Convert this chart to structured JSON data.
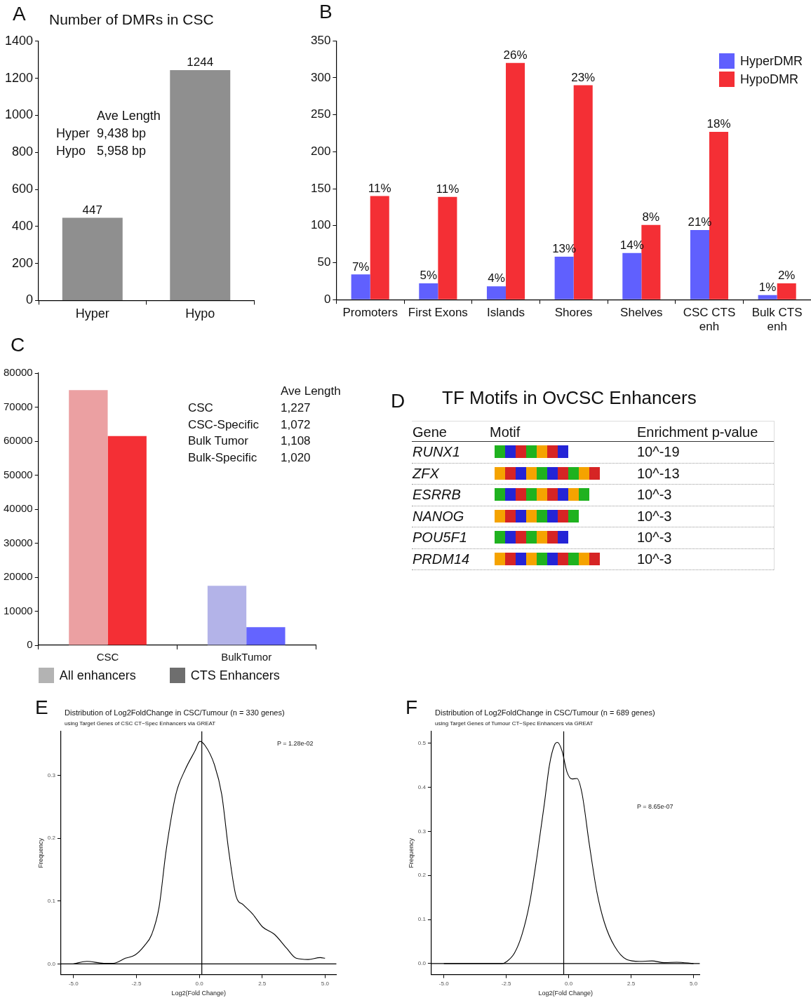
{
  "chart_data": [
    {
      "type": "bar",
      "title": "Number of DMRs in CSC",
      "categories": [
        "Hyper",
        "Hypo"
      ],
      "values": [
        447,
        1244
      ],
      "color": "#8f8f8f",
      "ylim": [
        0,
        1400
      ],
      "yticks": [
        0,
        200,
        400,
        600,
        800,
        1000,
        1200,
        1400
      ],
      "data_labels": true,
      "annotations": [
        "A",
        "Ave Length",
        "Hyper",
        "9,438 bp",
        "Hypo",
        "5,958 bp"
      ]
    },
    {
      "type": "bar",
      "categories": [
        "Promoters",
        "First Exons",
        "Islands",
        "Shores",
        "Shelves",
        "CSC CTS enh",
        "Bulk CTS enh"
      ],
      "series": [
        {
          "name": "HyperDMR",
          "color": "#6060fe",
          "values": [
            34,
            22,
            18,
            58,
            63,
            94,
            6
          ]
        },
        {
          "name": "HypoDMR",
          "color": "#f42f35",
          "values": [
            140,
            139,
            320,
            290,
            101,
            227,
            22
          ]
        }
      ],
      "ylim": [
        0,
        350
      ],
      "yticks": [
        0,
        50,
        100,
        150,
        200,
        250,
        300,
        350
      ],
      "legend": "top right",
      "annotations": [
        "B",
        {
          "text": "7%",
          "x": "Promoters",
          "y": 34
        },
        {
          "text": "11%",
          "x": "Promoters",
          "y": 140
        },
        {
          "text": "5%",
          "x": "First Exons",
          "y": 22
        },
        {
          "text": "11%",
          "x": "First Exons",
          "y": 139
        },
        {
          "text": "4%",
          "x": "Islands",
          "y": 18
        },
        {
          "text": "26%",
          "x": "Islands",
          "y": 320
        },
        {
          "text": "13%",
          "x": "Shores",
          "y": 58
        },
        {
          "text": "23%",
          "x": "Shores",
          "y": 290
        },
        {
          "text": "14%",
          "x": "Shelves",
          "y": 63
        },
        {
          "text": "8%",
          "x": "Shelves",
          "y": 101
        },
        {
          "text": "21%",
          "x": "CSC CTS enh",
          "y": 94
        },
        {
          "text": "18%",
          "x": "CSC CTS enh",
          "y": 227
        },
        {
          "text": "1%",
          "x": "Bulk CTS enh",
          "y": 6
        },
        {
          "text": "2%",
          "x": "Bulk CTS enh",
          "y": 22
        }
      ]
    },
    {
      "type": "bar",
      "categories": [
        "CSC",
        "BulkTumor"
      ],
      "series": [
        {
          "name": "All enhancers",
          "color": "#b3b3b3",
          "colors": [
            "#eba0a2",
            "#b3b3e8"
          ],
          "values": [
            75000,
            17500
          ]
        },
        {
          "name": "CTS Enhancers",
          "color": "#6e6e6e",
          "colors": [
            "#f42f35",
            "#6464ff"
          ],
          "values": [
            61500,
            5300
          ]
        }
      ],
      "ylim": [
        0,
        80000
      ],
      "yticks": [
        0,
        10000,
        20000,
        30000,
        40000,
        50000,
        60000,
        70000,
        80000
      ],
      "legend": "bottom",
      "annotations": [
        "C",
        "Ave Length",
        "CSC",
        "1,227",
        "CSC-Specific",
        "1,072",
        "Bulk Tumor",
        "1,108",
        "Bulk-Specific",
        "1,020"
      ]
    },
    {
      "type": "other",
      "title": "TF Motifs in OvCSC Enhancers",
      "annotations": [
        "D",
        "Gene",
        "Motif",
        "Enrichment p-value",
        "RUNX1",
        "10^-19",
        "ZFX",
        "10^-13",
        "ESRRB",
        "10^-3",
        "NANOG",
        "10^-3",
        "POU5F1",
        "10^-3",
        "PRDM14",
        "10^-3"
      ]
    },
    {
      "type": "line",
      "title": "Distribution of Log2FoldChange in CSC/Tumour (n = 330 genes)",
      "subtitle": "using Target Genes of CSC CT−Spec Enhancers via GREAT",
      "xlabel": "Log2(Fold Change)",
      "ylabel": "Frequency",
      "x": [
        -5,
        -4.47,
        -3.8,
        -3.42,
        -2.94,
        -2.56,
        -2.18,
        -1.89,
        -1.6,
        -1.32,
        -0.93,
        -0.55,
        -0.17,
        0.02,
        0.22,
        0.6,
        0.89,
        1.17,
        1.46,
        1.75,
        2.13,
        2.51,
        2.99,
        3.47,
        3.85,
        4.33,
        4.81,
        5
      ],
      "values": [
        0,
        0.004,
        0.001,
        0.001,
        0.009,
        0.014,
        0.029,
        0.047,
        0.09,
        0.18,
        0.27,
        0.31,
        0.339,
        0.354,
        0.348,
        0.317,
        0.27,
        0.18,
        0.108,
        0.094,
        0.079,
        0.059,
        0.047,
        0.025,
        0.009,
        0.007,
        0.01,
        0.009
      ],
      "color": "#000000",
      "xlim": [
        -5.5,
        5.45
      ],
      "ylim": [
        -0.017,
        0.37
      ],
      "xticks": [
        {
          "value": -5,
          "label": "-5.0"
        },
        {
          "value": -2.5,
          "label": "-2.5"
        },
        {
          "value": 0,
          "label": "0.0"
        },
        {
          "value": 2.5,
          "label": "2.5"
        },
        {
          "value": 5,
          "label": "5.0"
        }
      ],
      "yticks": [
        {
          "value": 0,
          "label": "0.0"
        },
        0.1,
        0.2,
        0.3
      ],
      "ref_lines": [
        {
          "axis": "x",
          "value": 0.1
        },
        {
          "axis": "y",
          "value": 0
        }
      ],
      "annotations": [
        "E",
        "P = 1.28e-02"
      ]
    },
    {
      "type": "line",
      "title": "Distribution of Log2FoldChange in CSC/Tumour (n = 689 genes)",
      "subtitle": "using Target Genes of Tumour CT−Spec Enhancers via GREAT",
      "xlabel": "Log2(Fold Change)",
      "ylabel": "Frequency",
      "x": [
        -5,
        -2.67,
        -2.47,
        -2.17,
        -1.87,
        -1.57,
        -1.27,
        -0.97,
        -0.77,
        -0.57,
        -0.45,
        -0.27,
        -0.07,
        0.13,
        0.33,
        0.53,
        0.83,
        1.13,
        1.43,
        1.83,
        2.33,
        2.83,
        3.33,
        3.83,
        4.33,
        5
      ],
      "values": [
        0,
        0,
        0.005,
        0.024,
        0.066,
        0.136,
        0.243,
        0.365,
        0.451,
        0.496,
        0.502,
        0.483,
        0.435,
        0.419,
        0.42,
        0.387,
        0.269,
        0.162,
        0.093,
        0.04,
        0.009,
        0.005,
        0.006,
        0.002,
        0.003,
        0
      ],
      "color": "#000000",
      "xlim": [
        -5.5,
        5.25
      ],
      "ylim": [
        -0.025,
        0.527
      ],
      "xticks": [
        {
          "value": -5,
          "label": "-5.0"
        },
        {
          "value": -2.5,
          "label": "-2.5"
        },
        {
          "value": 0,
          "label": "0.0"
        },
        {
          "value": 2.5,
          "label": "2.5"
        },
        {
          "value": 5,
          "label": "5.0"
        }
      ],
      "yticks": [
        {
          "value": 0,
          "label": "0.0"
        },
        0.1,
        0.2,
        0.3,
        0.4,
        0.5
      ],
      "ref_lines": [
        {
          "axis": "x",
          "value": -0.2
        },
        {
          "axis": "y",
          "value": 0
        }
      ],
      "annotations": [
        "F",
        "P = 8.65e-07"
      ]
    }
  ]
}
